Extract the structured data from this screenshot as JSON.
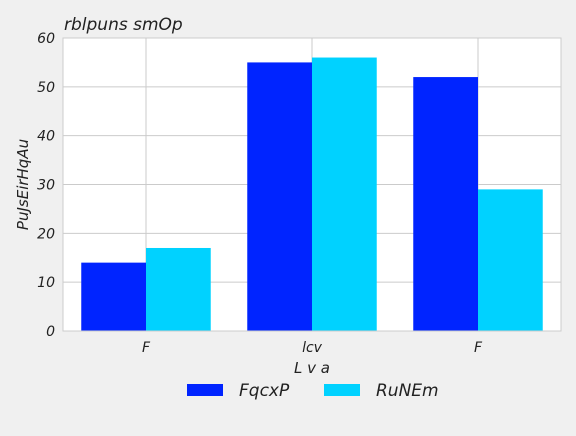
{
  "chart_data": {
    "type": "bar",
    "title": "rblpuns smOp",
    "xlabel": "L v a",
    "ylabel": "PuJsEirHqAu",
    "categories": [
      "F",
      "lcv",
      "F"
    ],
    "series": [
      {
        "name": "FqcxP",
        "values": [
          14,
          55,
          52
        ],
        "color": "#0024ff"
      },
      {
        "name": "RuNEm",
        "values": [
          17,
          56,
          29
        ],
        "color": "#00d2ff"
      }
    ],
    "ylim": [
      0,
      60
    ],
    "yticks": [
      0,
      10,
      20,
      30,
      40,
      50,
      60
    ],
    "grid": true,
    "legend_position": "bottom-center"
  }
}
